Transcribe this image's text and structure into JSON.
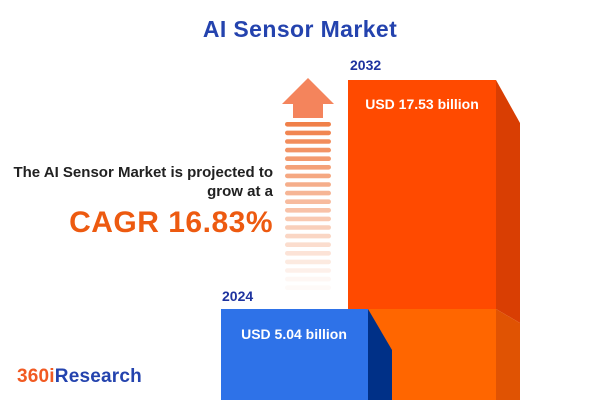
{
  "title": "AI Sensor Market",
  "annotation": {
    "line1": "The AI Sensor Market is projected to",
    "line2": "grow at a",
    "cagr": "CAGR 16.83%"
  },
  "bars": {
    "y2032": {
      "year": "2032",
      "value_label": "USD 17.53 billion"
    },
    "y2024": {
      "year": "2024",
      "value_label": "USD 5.04 billion"
    }
  },
  "logo": {
    "part1": "360i",
    "part2": "Research"
  },
  "colors": {
    "title_blue": "#2443AE",
    "year_label_blue": "#1E339F",
    "annotation_text": "#212121",
    "cagr_orange": "#ED5A10",
    "orange_front": "#FF4A00",
    "orange_side": "#D93E03",
    "orange_lower_front": "#FF6600",
    "orange_lower_side": "#E05303",
    "blue_front": "#2E72E8",
    "blue_side": "#003087",
    "arrow_head": "#F4845C",
    "arrow_stripe": "#F08049",
    "value_text": "#FFFFFF",
    "logo_orange": "#F15A22",
    "logo_blue": "#2443AE"
  },
  "chart_data": {
    "type": "bar",
    "title": "AI Sensor Market",
    "categories": [
      "2024",
      "2032"
    ],
    "values": [
      5.04,
      17.53
    ],
    "value_labels": [
      "USD 5.04 billion",
      "USD 17.53 billion"
    ],
    "unit": "USD billion",
    "cagr_percent": 16.83,
    "annotation": "The AI Sensor Market is projected to grow at a CAGR 16.83%",
    "legend": "none",
    "grid": false,
    "style": "3d-infographic-bars, bars anchored to bottom edge, arrow motif between annotation and 2032 bar"
  }
}
